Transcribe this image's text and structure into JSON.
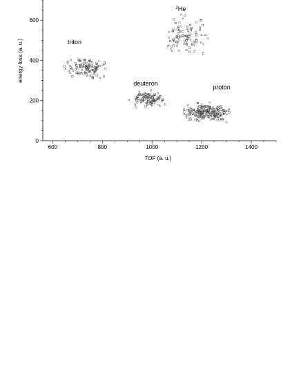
{
  "chart_data": {
    "type": "scatter",
    "title": "",
    "xlabel": "TOF (a. u.)",
    "ylabel": "energy loss (a. u.)",
    "xlim": [
      560,
      1500
    ],
    "ylim": [
      0,
      700
    ],
    "xticks": [
      600,
      800,
      1000,
      1200,
      1400
    ],
    "yticks": [
      0,
      200,
      400,
      600
    ],
    "grid": false,
    "annotations": [
      {
        "id": "triton",
        "text": "triton",
        "x": 660,
        "y": 480
      },
      {
        "id": "deuteron",
        "text": "deuteron",
        "x": 925,
        "y": 275
      },
      {
        "id": "he3",
        "text": "He",
        "sup": "3",
        "x": 1095,
        "y": 645
      },
      {
        "id": "proton",
        "text": "proton",
        "x": 1245,
        "y": 255
      }
    ],
    "clusters": [
      {
        "name": "triton",
        "x_range": [
          635,
          845
        ],
        "y_range": [
          300,
          430
        ],
        "x_center": 740,
        "y_center": 360,
        "count": 120
      },
      {
        "name": "deuteron",
        "x_range": [
          905,
          1085
        ],
        "y_range": [
          155,
          255
        ],
        "x_center": 985,
        "y_center": 210,
        "count": 110
      },
      {
        "name": "proton",
        "x_range": [
          1085,
          1345
        ],
        "y_range": [
          95,
          215
        ],
        "x_center": 1210,
        "y_center": 140,
        "count": 220
      },
      {
        "name": "3He",
        "x_range": [
          1015,
          1255
        ],
        "y_range": [
          390,
          645
        ],
        "x_center": 1135,
        "y_center": 520,
        "count": 100
      }
    ]
  }
}
